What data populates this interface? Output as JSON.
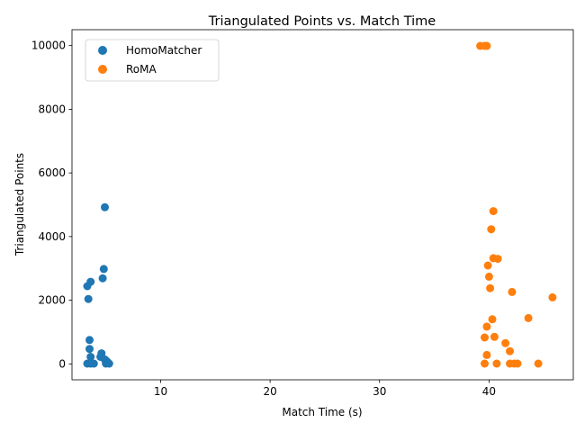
{
  "chart_data": {
    "type": "scatter",
    "title": "Triangulated Points vs. Match Time",
    "xlabel": "Match Time (s)",
    "ylabel": "Triangulated Points",
    "xlim": [
      1.9,
      47.7
    ],
    "ylim": [
      -500,
      10500
    ],
    "xticks": [
      10,
      20,
      30,
      40
    ],
    "yticks": [
      0,
      2000,
      4000,
      6000,
      8000,
      10000
    ],
    "grid": false,
    "legend_position": "top-left",
    "series": [
      {
        "name": "HomoMatcher",
        "color": "#1f77b4",
        "points": [
          [
            4.9,
            4920
          ],
          [
            4.8,
            2980
          ],
          [
            3.6,
            2580
          ],
          [
            4.7,
            2690
          ],
          [
            3.3,
            2440
          ],
          [
            3.4,
            2040
          ],
          [
            3.5,
            750
          ],
          [
            3.5,
            470
          ],
          [
            4.6,
            330
          ],
          [
            3.6,
            220
          ],
          [
            4.5,
            220
          ],
          [
            4.9,
            140
          ],
          [
            5.1,
            80
          ],
          [
            3.3,
            10
          ],
          [
            3.6,
            10
          ],
          [
            3.9,
            10
          ],
          [
            5.0,
            10
          ],
          [
            5.3,
            10
          ]
        ]
      },
      {
        "name": "RoMA",
        "color": "#ff7f0e",
        "points": [
          [
            39.2,
            9990
          ],
          [
            39.6,
            9990
          ],
          [
            39.8,
            9990
          ],
          [
            40.4,
            4800
          ],
          [
            40.2,
            4230
          ],
          [
            40.4,
            3320
          ],
          [
            40.8,
            3300
          ],
          [
            39.9,
            3090
          ],
          [
            40.0,
            2740
          ],
          [
            40.1,
            2380
          ],
          [
            42.1,
            2260
          ],
          [
            45.8,
            2090
          ],
          [
            43.6,
            1440
          ],
          [
            40.3,
            1400
          ],
          [
            39.8,
            1170
          ],
          [
            40.5,
            850
          ],
          [
            39.6,
            830
          ],
          [
            41.5,
            650
          ],
          [
            41.9,
            400
          ],
          [
            39.8,
            280
          ],
          [
            39.6,
            10
          ],
          [
            40.7,
            10
          ],
          [
            41.9,
            10
          ],
          [
            42.3,
            10
          ],
          [
            42.6,
            10
          ],
          [
            44.5,
            10
          ]
        ]
      }
    ]
  }
}
